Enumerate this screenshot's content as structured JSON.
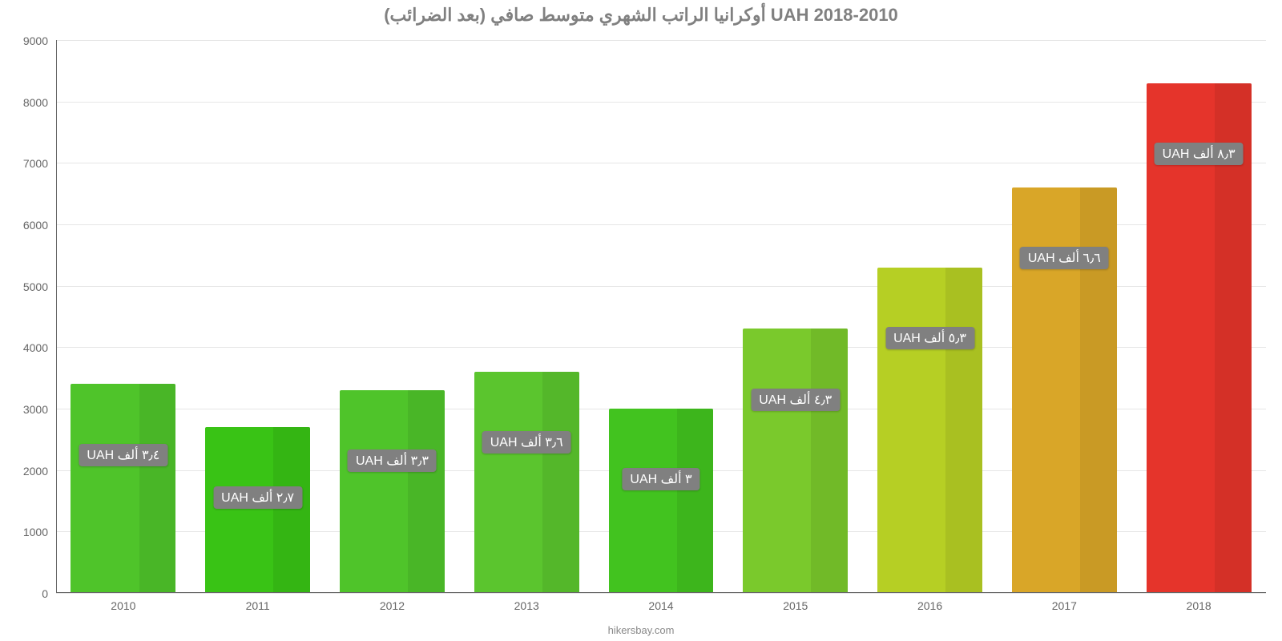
{
  "chart": {
    "type": "bar",
    "title": "أوكرانيا الراتب الشهري متوسط صافي (بعد الضرائب) UAH 2018-2010",
    "title_color": "#808080",
    "title_fontsize": 22,
    "source": "hikersbay.com",
    "background_color": "#ffffff",
    "grid_color": "#e6e6e6",
    "axis_color": "#666666",
    "tick_label_color": "#666666",
    "tick_fontsize": 14,
    "badge_bg": "#808080",
    "badge_text_color": "#ffffff",
    "badge_fontsize": 16,
    "ylim": [
      0,
      9000
    ],
    "ytick_step": 1000,
    "yticks": [
      0,
      1000,
      2000,
      3000,
      4000,
      5000,
      6000,
      7000,
      8000,
      9000
    ],
    "categories": [
      "2010",
      "2011",
      "2012",
      "2013",
      "2014",
      "2015",
      "2016",
      "2017",
      "2018"
    ],
    "values": [
      3400,
      2700,
      3300,
      3600,
      3000,
      4300,
      5300,
      6600,
      8300
    ],
    "value_labels": [
      "٣٫٤ ألف UAH",
      "٢٫٧ ألف UAH",
      "٣٫٣ ألف UAH",
      "٣٫٦ ألف UAH",
      "٣ ألف UAH",
      "٤٫٣ ألف UAH",
      "٥٫٣ ألف UAH",
      "٦٫٦ ألف UAH",
      "٨٫٣ ألف UAH"
    ],
    "bar_colors": [
      "#4fc42a",
      "#39c315",
      "#4fc42a",
      "#5bc52e",
      "#42c31f",
      "#7ac92c",
      "#b6cf24",
      "#d9a628",
      "#e5342b"
    ],
    "bar_width": 0.78,
    "label_offset": 1150
  }
}
